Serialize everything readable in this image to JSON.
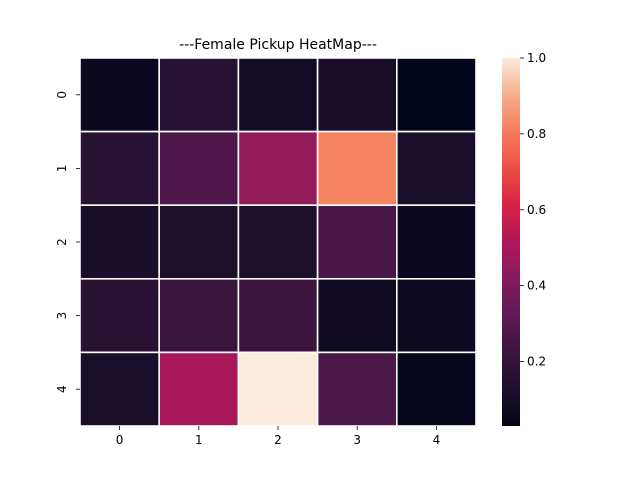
{
  "chart_data": {
    "type": "heatmap",
    "title": "---Female Pickup HeatMap---",
    "x_categories": [
      "0",
      "1",
      "2",
      "3",
      "4"
    ],
    "y_categories": [
      "0",
      "1",
      "2",
      "3",
      "4"
    ],
    "values": [
      [
        0.06,
        0.16,
        0.09,
        0.11,
        0.03
      ],
      [
        0.16,
        0.28,
        0.45,
        0.82,
        0.12
      ],
      [
        0.11,
        0.13,
        0.13,
        0.26,
        0.06
      ],
      [
        0.17,
        0.22,
        0.23,
        0.08,
        0.07
      ],
      [
        0.12,
        0.5,
        1.0,
        0.27,
        0.04
      ]
    ],
    "colorbar": {
      "range": [
        0.03,
        1.0
      ],
      "ticks": [
        "0.2",
        "0.4",
        "0.6",
        "0.8",
        "1.0"
      ]
    },
    "colormap": "rocket",
    "cell_separator_color": "#ffffff",
    "grid": false,
    "legend": "colorbar-right"
  }
}
